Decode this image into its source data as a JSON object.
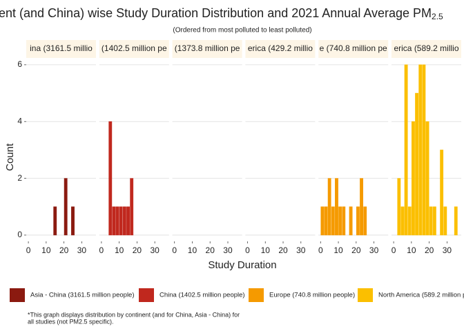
{
  "chart_data": {
    "type": "histogram",
    "title": "ent (and China) wise Study Duration Distribution and 2021 Annual Average PM",
    "title_subscript": "2.5",
    "subtitle": "(Ordered from most polluted to least polluted)",
    "x_label": "Study Duration",
    "y_label": "Count",
    "bins": [
      0,
      2,
      4,
      6,
      8,
      10,
      12,
      14,
      16,
      18,
      20,
      22,
      24,
      26,
      28,
      30,
      32,
      34,
      36,
      38
    ],
    "xlim": [
      -1.2,
      38
    ],
    "xticks": [
      0,
      10,
      20,
      30
    ],
    "ylim": [
      -0.22,
      6.24
    ],
    "yticks": [
      0,
      2,
      4,
      6
    ],
    "grid": true,
    "facets": [
      {
        "strip": "ina (3161.5 millio",
        "color": "#8b1a10",
        "values": [
          0,
          0,
          0,
          0,
          0,
          0,
          0,
          1,
          0,
          0,
          2,
          0,
          1,
          0,
          0,
          0,
          0,
          0,
          0
        ]
      },
      {
        "strip": "(1402.5 million pe",
        "color": "#c0281e",
        "values": [
          0,
          0,
          4,
          1,
          1,
          1,
          1,
          1,
          2,
          0,
          0,
          0,
          0,
          0,
          0,
          0,
          0,
          0,
          0
        ]
      },
      {
        "strip": "(1373.8 million pe",
        "values": [
          0,
          0,
          0,
          0,
          0,
          0,
          0,
          0,
          0,
          0,
          0,
          0,
          0,
          0,
          0,
          0,
          0,
          0,
          0
        ]
      },
      {
        "strip": "erica (429.2 millio",
        "values": [
          0,
          0,
          0,
          0,
          0,
          0,
          0,
          0,
          0,
          0,
          0,
          0,
          0,
          0,
          0,
          0,
          0,
          0,
          0
        ]
      },
      {
        "strip": "e (740.8 million pe",
        "color": "#f59a00",
        "values": [
          1,
          1,
          2,
          1,
          2,
          1,
          1,
          0,
          1,
          0,
          1,
          2,
          1,
          0,
          0,
          0,
          0,
          0,
          0
        ]
      },
      {
        "strip": "erica (589.2 millio",
        "color": "#fbbf00",
        "values": [
          0,
          2,
          1,
          6,
          1,
          4,
          5,
          6,
          6,
          4,
          1,
          1,
          0,
          3,
          1,
          0,
          0,
          1,
          0
        ]
      }
    ],
    "legend": [
      {
        "name": "Asia - China (3161.5 million people)",
        "color": "#8b1a10"
      },
      {
        "name": "China (1402.5 million people)",
        "color": "#c0281e"
      },
      {
        "name": "Europe (740.8 million people)",
        "color": "#f59a00"
      },
      {
        "name": "North America (589.2 million p",
        "color": "#fbbf00"
      }
    ],
    "footnote": [
      "*This graph displays distribution by continent (and for China, Asia - China) for",
      "all studies (not PM2.5 specific)."
    ]
  }
}
